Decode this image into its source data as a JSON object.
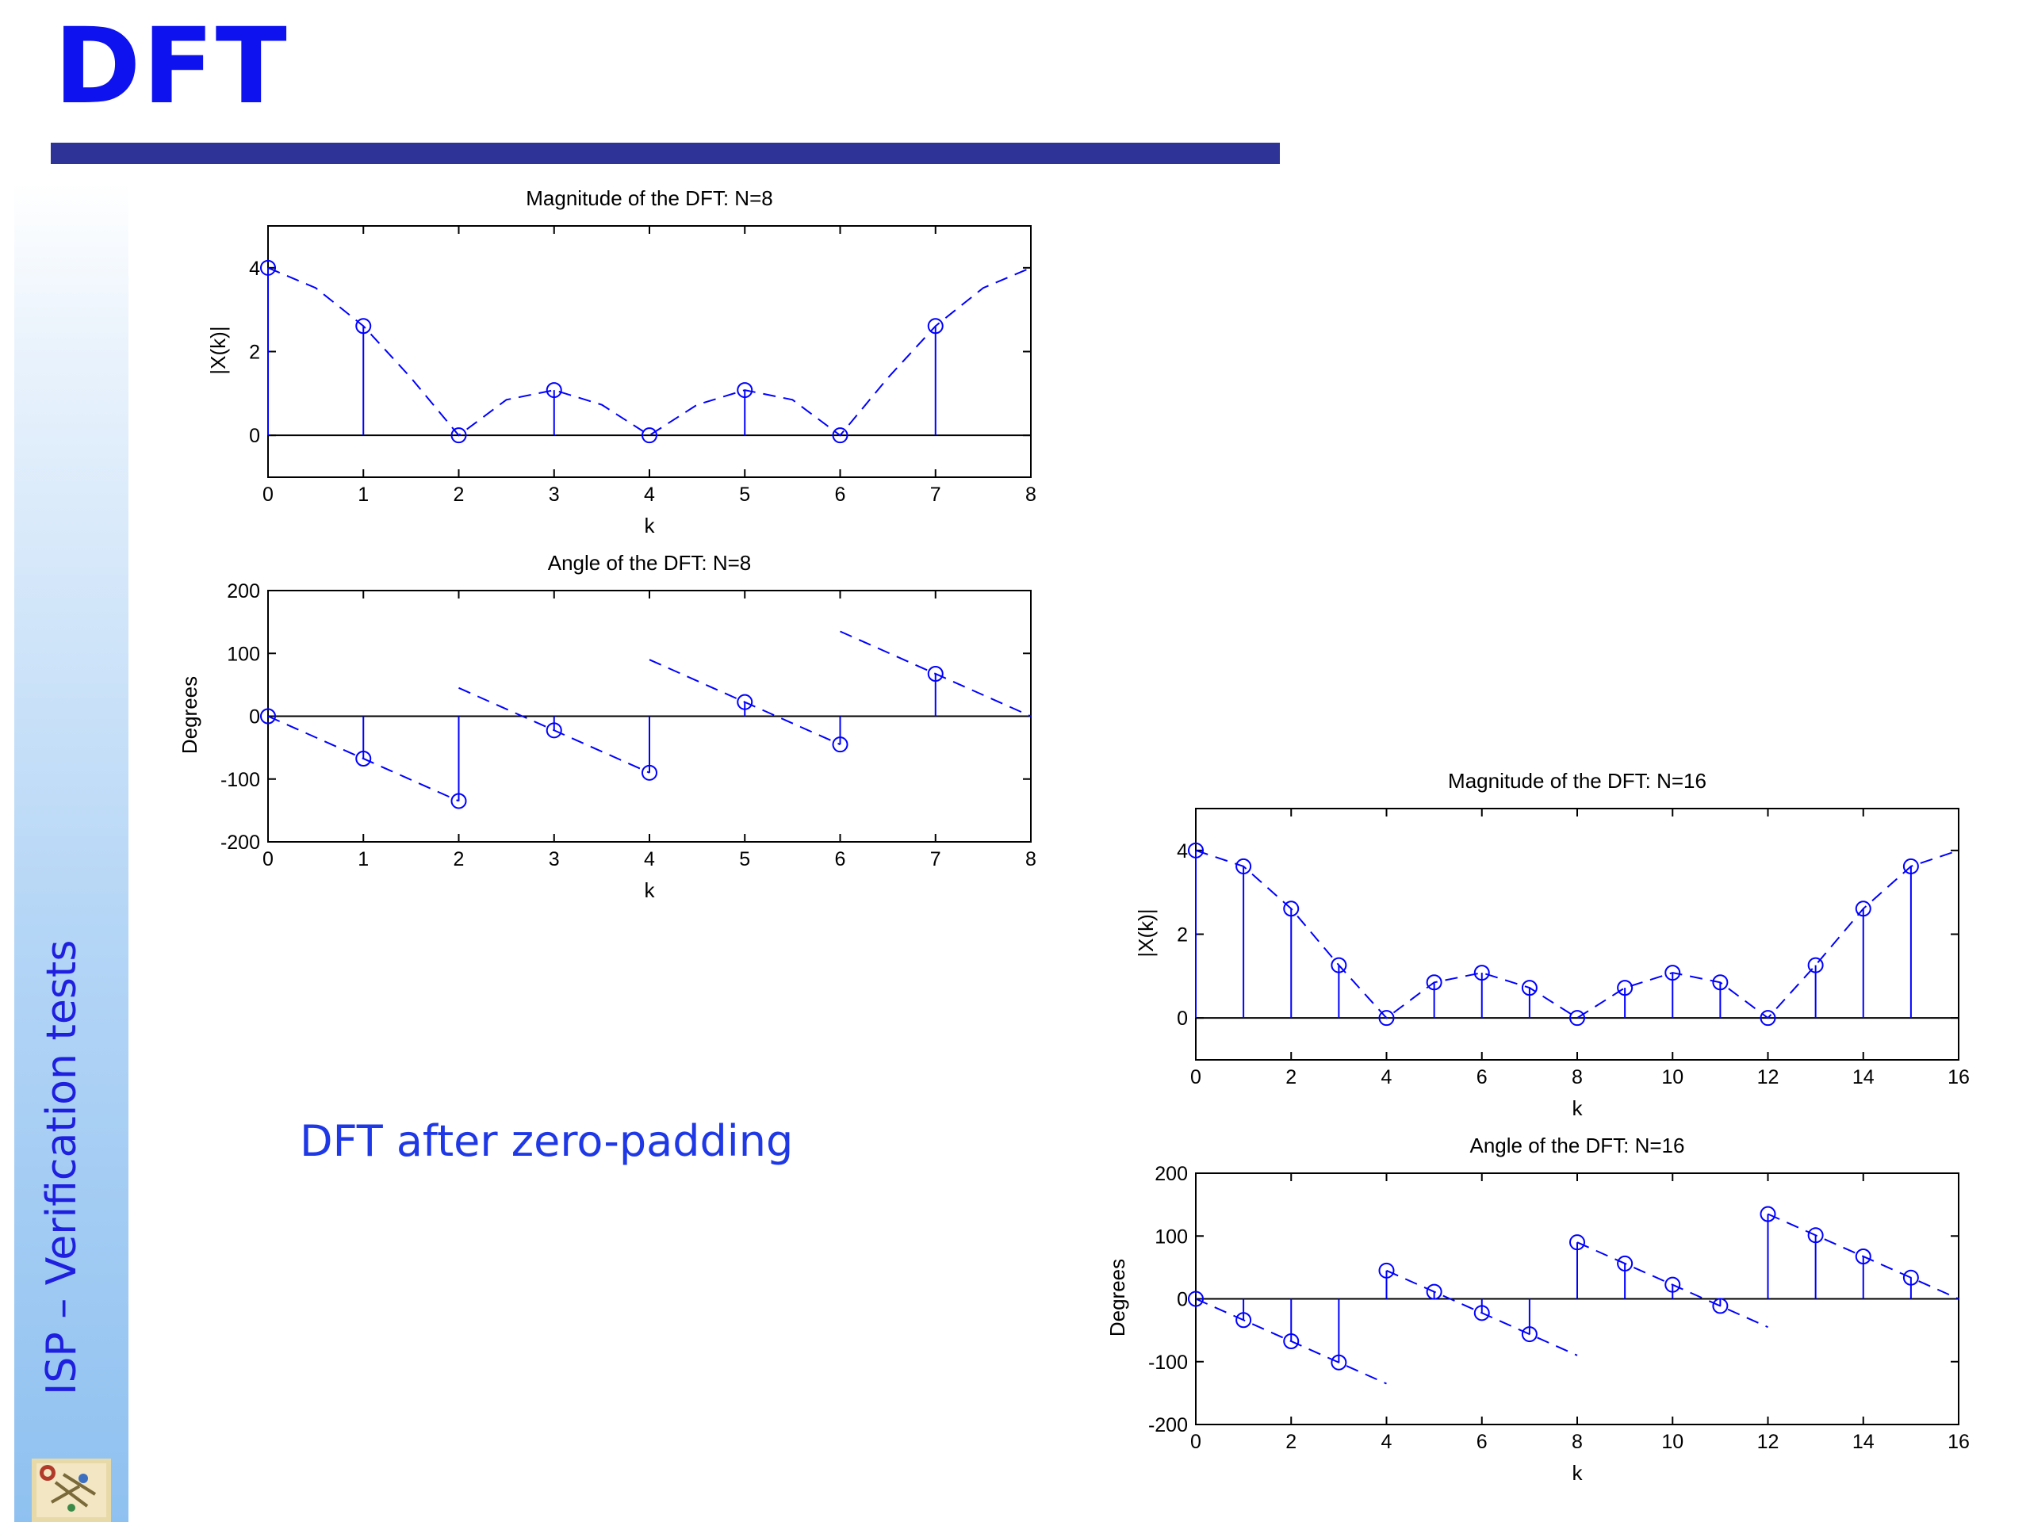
{
  "slide": {
    "title": "DFT",
    "side_label": "ISP – Verification tests",
    "subtitle": "DFT after zero-padding",
    "accent_color": "#0d12ee",
    "bar_color": "#2e3397",
    "logo_icon": "course-logo-icon"
  },
  "chart_data": [
    {
      "type": "stem",
      "title": "Magnitude of the DFT: N=8",
      "xlabel": "k",
      "ylabel": "|X(k)|",
      "xlim": [
        0,
        8
      ],
      "ylim": [
        -1,
        5
      ],
      "xticks": [
        0,
        1,
        2,
        3,
        4,
        5,
        6,
        7,
        8
      ],
      "yticks": [
        0,
        2,
        4
      ],
      "color": "#0000ff",
      "stems": {
        "x": [
          0,
          1,
          2,
          3,
          4,
          5,
          6,
          7
        ],
        "y": [
          4.0,
          2.61,
          0.0,
          1.08,
          0.0,
          1.08,
          0.0,
          2.61
        ]
      },
      "dashed_curve": {
        "x": [
          0,
          0.5,
          1,
          1.5,
          2,
          2.5,
          3,
          3.5,
          4,
          4.5,
          5,
          5.5,
          6,
          6.5,
          7,
          7.5,
          8
        ],
        "y": [
          4.0,
          3.52,
          2.61,
          1.37,
          0.0,
          0.85,
          1.08,
          0.73,
          0.0,
          0.73,
          1.08,
          0.85,
          0.0,
          1.37,
          2.61,
          3.52,
          4.0
        ]
      }
    },
    {
      "type": "stem",
      "title": "Angle of the DFT: N=8",
      "xlabel": "k",
      "ylabel": "Degrees",
      "xlim": [
        0,
        8
      ],
      "ylim": [
        -200,
        200
      ],
      "xticks": [
        0,
        1,
        2,
        3,
        4,
        5,
        6,
        7,
        8
      ],
      "yticks": [
        -200,
        -100,
        0,
        100,
        200
      ],
      "color": "#0000ff",
      "stems": {
        "x": [
          0,
          1,
          2,
          3,
          4,
          5,
          6,
          7
        ],
        "y": [
          0,
          -67.5,
          -135,
          -22.5,
          -90,
          22.5,
          -45,
          67.5
        ]
      },
      "dashed_curve": {
        "x": [
          0,
          2,
          null,
          2,
          4,
          null,
          4,
          6,
          null,
          6,
          8
        ],
        "y": [
          0,
          -135,
          null,
          45,
          -90,
          null,
          90,
          -45,
          null,
          135,
          0
        ]
      }
    },
    {
      "type": "stem",
      "title": "Magnitude of the DFT: N=16",
      "xlabel": "k",
      "ylabel": "|X(k)|",
      "xlim": [
        0,
        16
      ],
      "ylim": [
        -1,
        5
      ],
      "xticks": [
        0,
        2,
        4,
        6,
        8,
        10,
        12,
        14,
        16
      ],
      "yticks": [
        0,
        2,
        4
      ],
      "color": "#0000ff",
      "stems": {
        "x": [
          0,
          1,
          2,
          3,
          4,
          5,
          6,
          7,
          8,
          9,
          10,
          11,
          12,
          13,
          14,
          15
        ],
        "y": [
          4.0,
          3.62,
          2.61,
          1.26,
          0.0,
          0.85,
          1.08,
          0.72,
          0.0,
          0.72,
          1.08,
          0.85,
          0.0,
          1.26,
          2.61,
          3.62
        ]
      },
      "dashed_curve": {
        "x": [
          0,
          1,
          2,
          3,
          4,
          5,
          6,
          7,
          8,
          9,
          10,
          11,
          12,
          13,
          14,
          15,
          16
        ],
        "y": [
          4.0,
          3.62,
          2.61,
          1.26,
          0.0,
          0.85,
          1.08,
          0.72,
          0.0,
          0.72,
          1.08,
          0.85,
          0.0,
          1.26,
          2.61,
          3.62,
          4.0
        ]
      }
    },
    {
      "type": "stem",
      "title": "Angle of the DFT: N=16",
      "xlabel": "k",
      "ylabel": "Degrees",
      "xlim": [
        0,
        16
      ],
      "ylim": [
        -200,
        200
      ],
      "xticks": [
        0,
        2,
        4,
        6,
        8,
        10,
        12,
        14,
        16
      ],
      "yticks": [
        -200,
        -100,
        0,
        100,
        200
      ],
      "color": "#0000ff",
      "stems": {
        "x": [
          0,
          1,
          2,
          3,
          4,
          5,
          6,
          7,
          8,
          9,
          10,
          11,
          12,
          13,
          14,
          15
        ],
        "y": [
          0,
          -33.75,
          -67.5,
          -101.25,
          45,
          11.25,
          -22.5,
          -56.25,
          90,
          56.25,
          22.5,
          -11.25,
          135,
          101.25,
          67.5,
          33.75
        ]
      },
      "dashed_curve": {
        "x": [
          0,
          4,
          null,
          4,
          8,
          null,
          8,
          12,
          null,
          12,
          16
        ],
        "y": [
          0,
          -135,
          null,
          45,
          -90,
          null,
          90,
          -45,
          null,
          135,
          0
        ]
      }
    }
  ]
}
